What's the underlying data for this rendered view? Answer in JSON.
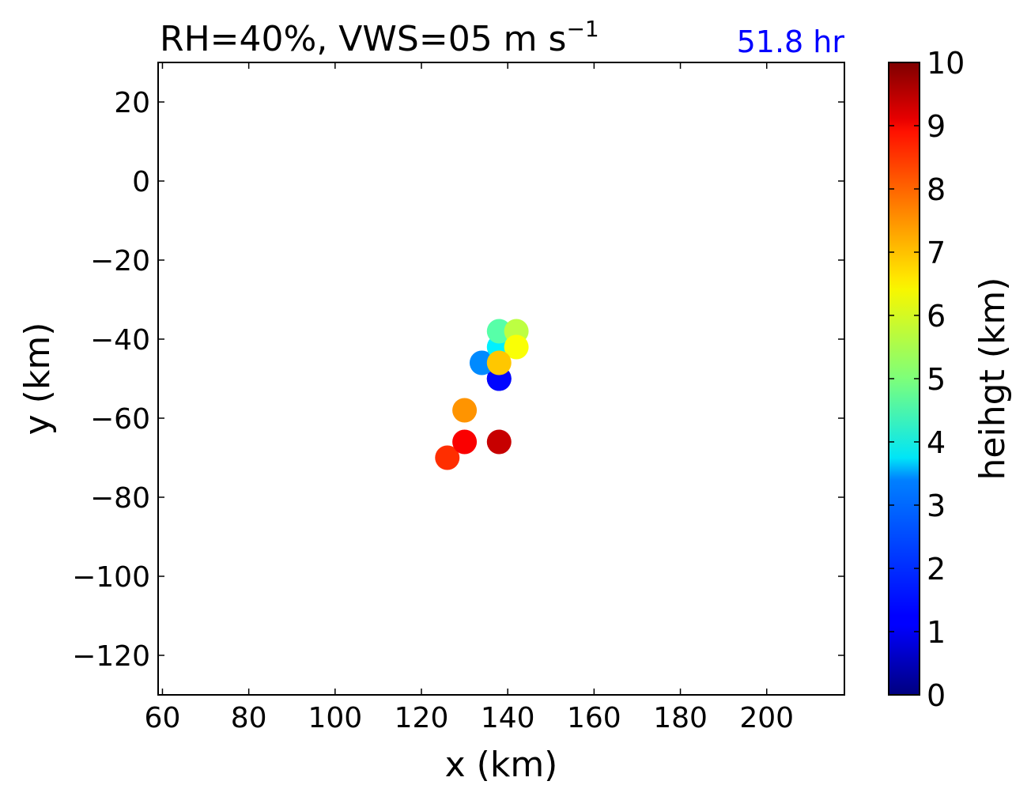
{
  "chart_data": {
    "type": "scatter",
    "title": "RH=40%, VWS=05 m s",
    "title_superscript": "−1",
    "subtitle": "51.8 hr",
    "xlabel": "x (km)",
    "ylabel": "y (km)",
    "xlim": [
      59,
      218
    ],
    "ylim": [
      -130,
      30
    ],
    "xticks": [
      60,
      80,
      100,
      120,
      140,
      160,
      180,
      200
    ],
    "xtick_labels": [
      "60",
      "80",
      "100",
      "120",
      "140",
      "160",
      "180",
      "200"
    ],
    "yticks": [
      20,
      0,
      -20,
      -40,
      -60,
      -80,
      -100,
      -120
    ],
    "ytick_labels": [
      "20",
      "0",
      "−20",
      "−40",
      "−60",
      "−80",
      "−100",
      "−120"
    ],
    "grid": false,
    "colorbar": {
      "label": "heihgt (km)",
      "range": [
        0,
        10
      ],
      "ticks": [
        0,
        1,
        2,
        3,
        4,
        5,
        6,
        7,
        8,
        9,
        10
      ],
      "tick_labels": [
        "0",
        "1",
        "2",
        "3",
        "4",
        "5",
        "6",
        "7",
        "8",
        "9",
        "10"
      ],
      "colormap": "jet"
    },
    "points": [
      {
        "x": 138,
        "y": -50,
        "height": 1.0
      },
      {
        "x": 138,
        "y": -50,
        "height": 1.3
      },
      {
        "x": 134,
        "y": -46,
        "height": 2.6
      },
      {
        "x": 138,
        "y": -42,
        "height": 3.6
      },
      {
        "x": 138,
        "y": -38,
        "height": 4.6
      },
      {
        "x": 142,
        "y": -38,
        "height": 5.6
      },
      {
        "x": 142,
        "y": -42,
        "height": 6.2
      },
      {
        "x": 138,
        "y": -46,
        "height": 6.8
      },
      {
        "x": 130,
        "y": -58,
        "height": 7.3
      },
      {
        "x": 126,
        "y": -70,
        "height": 8.3
      },
      {
        "x": 130,
        "y": -66,
        "height": 8.8
      },
      {
        "x": 138,
        "y": -66,
        "height": 9.3
      }
    ]
  },
  "colors": {
    "subtitle": "#0000ff",
    "axes": "#000000",
    "background": "#ffffff"
  }
}
